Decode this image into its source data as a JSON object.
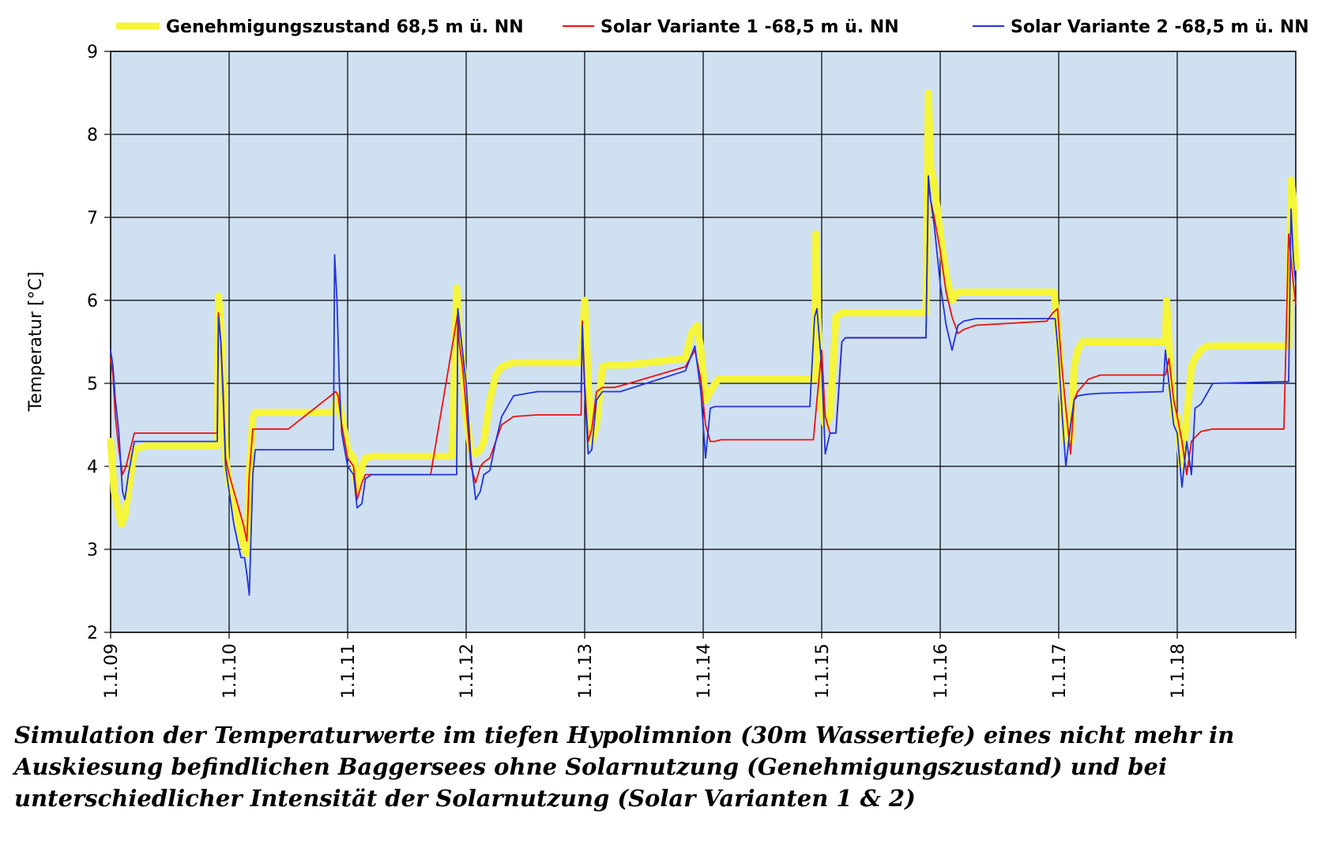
{
  "caption": "Simulation der Temperaturwerte im tiefen Hypolimnion (30m Wassertiefe) eines nicht mehr in Auskiesung befindlichen Baggersees ohne Solarnutzung (Genehmigungszustand) und bei unterschiedlicher Intensität der Solarnutzung (Solar Varianten 1 & 2)",
  "chart_data": {
    "type": "line",
    "title": "",
    "xlabel": "",
    "ylabel": "Temperatur [°C]",
    "ylim": [
      2,
      9
    ],
    "yticks": [
      2,
      3,
      4,
      5,
      6,
      7,
      8,
      9
    ],
    "xlim": [
      2009.0,
      2019.0
    ],
    "xtick_labels": [
      "1.1.09",
      "1.1.10",
      "1.1.11",
      "1.1.12",
      "1.1.13",
      "1.1.14",
      "1.1.15",
      "1.1.16",
      "1.1.17",
      "1.1.18"
    ],
    "xtick_values": [
      2009,
      2010,
      2011,
      2012,
      2013,
      2014,
      2015,
      2016,
      2017,
      2018
    ],
    "grid": true,
    "legend_position": "top",
    "plot_background": "#cfe0f1",
    "series": [
      {
        "name": "Genehmigungszustand 68,5 m ü. NN",
        "color": "#f5f53a",
        "x": [
          2009.0,
          2009.01,
          2009.03,
          2009.06,
          2009.09,
          2009.12,
          2009.16,
          2009.2,
          2009.3,
          2009.7,
          2009.9,
          2009.91,
          2009.93,
          2009.95,
          2009.97,
          2010.0,
          2010.04,
          2010.08,
          2010.12,
          2010.15,
          2010.17,
          2010.2,
          2010.22,
          2010.3,
          2010.88,
          2010.91,
          2010.95,
          2011.0,
          2011.05,
          2011.08,
          2011.12,
          2011.15,
          2011.2,
          2011.88,
          2011.92,
          2011.94,
          2011.97,
          2012.0,
          2012.04,
          2012.08,
          2012.12,
          2012.15,
          2012.2,
          2012.25,
          2012.3,
          2012.4,
          2012.5,
          2012.8,
          2012.97,
          2013.0,
          2013.03,
          2013.06,
          2013.1,
          2013.15,
          2013.2,
          2013.22,
          2013.25,
          2013.27,
          2013.35,
          2013.85,
          2013.9,
          2013.95,
          2013.98,
          2014.02,
          2014.06,
          2014.1,
          2014.13,
          2014.18,
          2014.3,
          2014.6,
          2014.94,
          2014.95,
          2014.97,
          2015.0,
          2015.03,
          2015.07,
          2015.12,
          2015.17,
          2015.2,
          2015.23,
          2015.3,
          2015.88,
          2015.9,
          2015.92,
          2015.95,
          2016.0,
          2016.05,
          2016.1,
          2016.15,
          2016.2,
          2016.25,
          2016.3,
          2016.96,
          2016.99,
          2017.02,
          2017.06,
          2017.1,
          2017.13,
          2017.16,
          2017.2,
          2017.25,
          2017.35,
          2017.9,
          2017.91,
          2017.94,
          2017.97,
          2018.0,
          2018.04,
          2018.08,
          2018.12,
          2018.15,
          2018.2,
          2018.25,
          2018.3,
          2018.4,
          2018.94,
          2018.96,
          2018.98,
          2019.0
        ],
        "values": [
          4.3,
          4.1,
          3.7,
          3.5,
          3.3,
          3.4,
          3.8,
          4.2,
          4.25,
          4.25,
          4.25,
          6.05,
          5.7,
          5.0,
          4.1,
          3.8,
          3.6,
          3.3,
          3.05,
          2.95,
          3.9,
          4.6,
          4.65,
          4.65,
          4.65,
          4.85,
          4.6,
          4.2,
          4.1,
          3.7,
          4.0,
          4.1,
          4.12,
          4.12,
          6.15,
          5.6,
          5.2,
          4.6,
          4.2,
          4.15,
          4.2,
          4.3,
          4.8,
          5.1,
          5.2,
          5.25,
          5.25,
          5.25,
          5.25,
          6.0,
          5.0,
          4.3,
          4.5,
          5.2,
          5.22,
          5.22,
          5.22,
          5.22,
          5.22,
          5.3,
          5.6,
          5.7,
          5.4,
          4.8,
          4.9,
          5.0,
          5.05,
          5.05,
          5.05,
          5.05,
          5.05,
          6.8,
          5.7,
          4.7,
          4.5,
          4.6,
          5.8,
          5.85,
          5.85,
          5.85,
          5.85,
          5.85,
          8.5,
          7.6,
          7.4,
          6.8,
          6.3,
          6.0,
          6.1,
          6.1,
          6.1,
          6.1,
          6.1,
          5.7,
          5.0,
          4.3,
          4.3,
          5.2,
          5.4,
          5.5,
          5.5,
          5.5,
          5.5,
          6.0,
          5.2,
          4.6,
          4.6,
          4.0,
          4.6,
          5.2,
          5.3,
          5.4,
          5.45,
          5.45,
          5.45,
          5.45,
          7.45,
          7.2,
          6.4
        ]
      },
      {
        "name": "Solar Variante 1 -68,5 m ü. NN",
        "color": "#ee1111",
        "x": [
          2009.0,
          2009.02,
          2009.04,
          2009.07,
          2009.1,
          2009.13,
          2009.2,
          2009.9,
          2009.91,
          2009.93,
          2009.95,
          2009.97,
          2010.0,
          2010.04,
          2010.08,
          2010.12,
          2010.15,
          2010.17,
          2010.2,
          2010.22,
          2010.5,
          2010.9,
          2010.92,
          2010.95,
          2011.0,
          2011.05,
          2011.08,
          2011.12,
          2011.15,
          2011.2,
          2011.7,
          2011.93,
          2011.94,
          2011.97,
          2012.0,
          2012.04,
          2012.08,
          2012.12,
          2012.15,
          2012.2,
          2012.25,
          2012.3,
          2012.4,
          2012.6,
          2012.97,
          2012.98,
          2013.0,
          2013.03,
          2013.06,
          2013.1,
          2013.15,
          2013.2,
          2013.25,
          2013.3,
          2013.85,
          2013.93,
          2013.98,
          2014.02,
          2014.06,
          2014.1,
          2014.15,
          2014.3,
          2014.93,
          2014.96,
          2015.0,
          2015.03,
          2015.07,
          2015.12,
          2015.17,
          2015.2,
          2015.3,
          2015.88,
          2015.9,
          2015.92,
          2015.95,
          2016.0,
          2016.05,
          2016.1,
          2016.15,
          2016.2,
          2016.3,
          2016.9,
          2016.95,
          2016.99,
          2017.02,
          2017.06,
          2017.1,
          2017.13,
          2017.16,
          2017.25,
          2017.35,
          2017.9,
          2017.93,
          2017.97,
          2018.0,
          2018.04,
          2018.08,
          2018.12,
          2018.15,
          2018.2,
          2018.3,
          2018.9,
          2018.94,
          2018.96,
          2018.98,
          2019.0
        ],
        "values": [
          5.3,
          5.1,
          4.6,
          4.2,
          3.9,
          4.0,
          4.4,
          4.4,
          5.85,
          5.5,
          4.9,
          4.1,
          3.9,
          3.7,
          3.5,
          3.3,
          3.1,
          3.9,
          4.45,
          4.45,
          4.45,
          4.9,
          4.85,
          4.5,
          4.1,
          4.0,
          3.6,
          3.8,
          3.9,
          3.9,
          3.9,
          5.85,
          5.5,
          5.2,
          4.7,
          4.0,
          3.8,
          4.0,
          4.05,
          4.1,
          4.3,
          4.5,
          4.6,
          4.62,
          4.62,
          5.75,
          5.0,
          4.3,
          4.45,
          4.9,
          4.95,
          4.95,
          4.95,
          4.97,
          5.2,
          5.4,
          5.05,
          4.5,
          4.3,
          4.3,
          4.32,
          4.32,
          4.32,
          4.8,
          5.4,
          4.6,
          4.4,
          4.4,
          5.5,
          5.55,
          5.55,
          5.55,
          7.4,
          7.2,
          7.0,
          6.6,
          6.1,
          5.8,
          5.6,
          5.65,
          5.7,
          5.75,
          5.85,
          5.9,
          5.3,
          4.7,
          4.15,
          4.8,
          4.9,
          5.05,
          5.1,
          5.1,
          5.3,
          4.8,
          4.6,
          4.3,
          3.9,
          4.3,
          4.35,
          4.42,
          4.45,
          4.45,
          6.8,
          6.5,
          6.2,
          5.95
        ]
      },
      {
        "name": "Solar Variante 2 -68,5 m ü. NN",
        "color": "#2233dd",
        "x": [
          2009.0,
          2009.02,
          2009.04,
          2009.07,
          2009.1,
          2009.12,
          2009.15,
          2009.2,
          2009.9,
          2009.91,
          2009.93,
          2009.95,
          2009.97,
          2010.0,
          2010.04,
          2010.07,
          2010.1,
          2010.13,
          2010.15,
          2010.17,
          2010.2,
          2010.22,
          2010.5,
          2010.88,
          2010.89,
          2010.91,
          2010.93,
          2010.95,
          2011.0,
          2011.05,
          2011.08,
          2011.12,
          2011.15,
          2011.2,
          2011.5,
          2011.92,
          2011.93,
          2011.96,
          2012.0,
          2012.04,
          2012.08,
          2012.12,
          2012.15,
          2012.2,
          2012.25,
          2012.3,
          2012.4,
          2012.6,
          2012.97,
          2012.98,
          2013.0,
          2013.03,
          2013.06,
          2013.1,
          2013.15,
          2013.2,
          2013.25,
          2013.3,
          2013.85,
          2013.93,
          2013.98,
          2014.02,
          2014.06,
          2014.1,
          2014.15,
          2014.3,
          2014.9,
          2014.94,
          2014.96,
          2015.0,
          2015.03,
          2015.07,
          2015.12,
          2015.17,
          2015.2,
          2015.3,
          2015.88,
          2015.9,
          2015.92,
          2015.95,
          2016.0,
          2016.05,
          2016.1,
          2016.15,
          2016.2,
          2016.3,
          2016.9,
          2016.97,
          2017.0,
          2017.03,
          2017.06,
          2017.1,
          2017.13,
          2017.16,
          2017.25,
          2017.35,
          2017.88,
          2017.9,
          2017.93,
          2017.97,
          2018.0,
          2018.04,
          2018.08,
          2018.12,
          2018.15,
          2018.2,
          2018.3,
          2018.9,
          2018.94,
          2018.96,
          2018.98,
          2019.0
        ],
        "values": [
          5.4,
          5.2,
          4.8,
          4.4,
          3.7,
          3.6,
          3.9,
          4.3,
          4.3,
          5.8,
          5.5,
          4.8,
          4.0,
          3.7,
          3.3,
          3.1,
          2.9,
          2.9,
          2.7,
          2.45,
          3.9,
          4.2,
          4.2,
          4.2,
          6.55,
          6.0,
          5.0,
          4.4,
          4.0,
          3.9,
          3.5,
          3.55,
          3.85,
          3.9,
          3.9,
          3.9,
          5.9,
          5.5,
          5.0,
          4.1,
          3.6,
          3.7,
          3.9,
          3.95,
          4.3,
          4.6,
          4.85,
          4.9,
          4.9,
          5.7,
          4.9,
          4.15,
          4.2,
          4.8,
          4.9,
          4.9,
          4.9,
          4.9,
          5.15,
          5.45,
          4.9,
          4.1,
          4.7,
          4.72,
          4.72,
          4.72,
          4.72,
          5.8,
          5.9,
          5.2,
          4.15,
          4.4,
          4.4,
          5.5,
          5.55,
          5.55,
          5.55,
          7.5,
          7.2,
          6.9,
          6.2,
          5.7,
          5.4,
          5.7,
          5.75,
          5.78,
          5.78,
          5.78,
          5.3,
          4.6,
          4.0,
          4.5,
          4.8,
          4.85,
          4.87,
          4.88,
          4.9,
          5.4,
          5.0,
          4.5,
          4.4,
          3.75,
          4.3,
          3.9,
          4.7,
          4.75,
          5.0,
          5.02,
          5.02,
          7.1,
          6.5,
          6.2
        ]
      }
    ]
  }
}
